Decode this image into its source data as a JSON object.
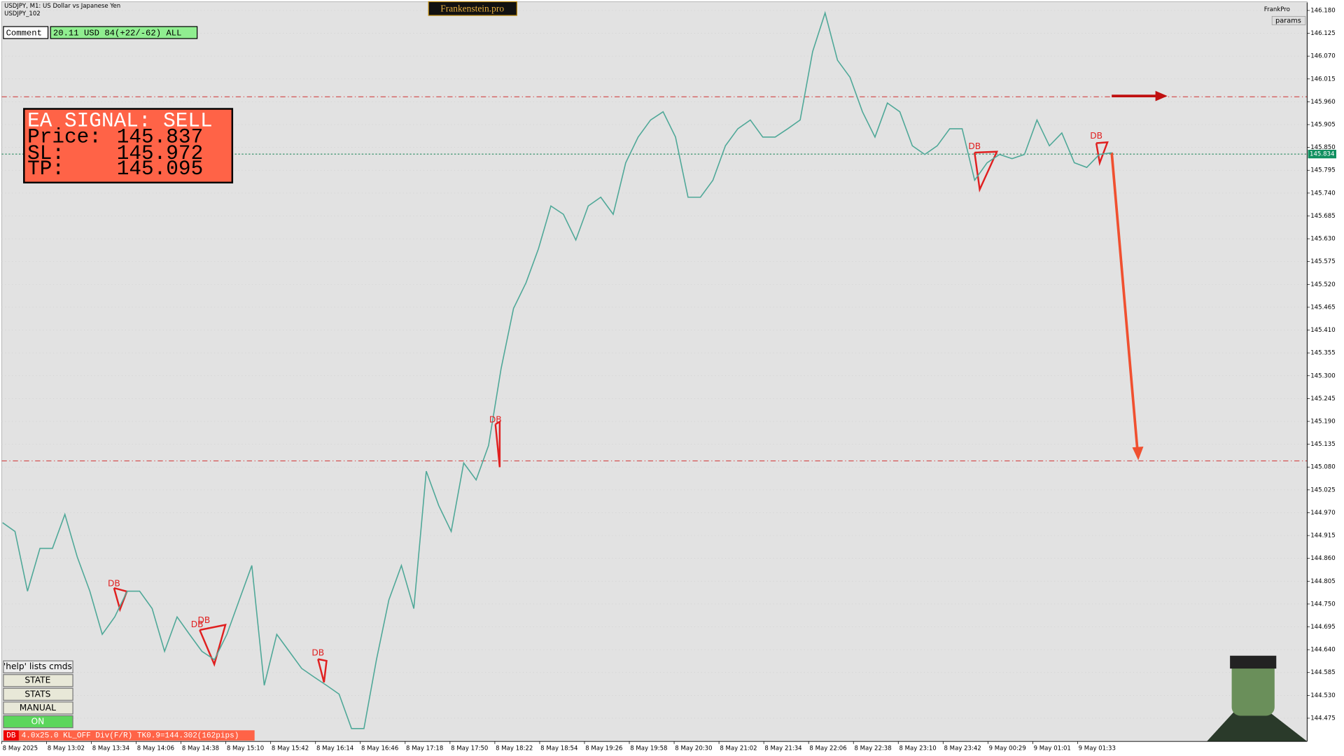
{
  "header": {
    "symbol": "USDJPY, M1:  US Dollar vs Japanese Yen",
    "account": "USDJPY_102",
    "brand": "Frankenstein.pro",
    "profile": "FrankPro",
    "params": "params"
  },
  "comment": {
    "label": "Comment",
    "text": "20.11 USD 84(+22/-62) ALL"
  },
  "signal": {
    "title": "EA SIGNAL: SELL",
    "price_label": "Price:",
    "price": 145.837,
    "sl_label": "SL:",
    "sl": 145.972,
    "tp_label": "TP:",
    "tp": 145.095
  },
  "bid": 145.834,
  "controls": {
    "help": "'help' lists cmds",
    "buttons": [
      "STATE",
      "STATS",
      "MANUAL",
      "ON"
    ]
  },
  "status": {
    "tag": "DB",
    "text": "4.0x25.0 KL_OFF Div(F/R) TK0.9=144.302(162pips)"
  },
  "pattern_labels": [
    "DB",
    "DB",
    "DB",
    "DB",
    "DB",
    "DB",
    "DB"
  ],
  "chart_data": {
    "type": "line",
    "x_labels": [
      "8 May 2025",
      "8 May 13:02",
      "8 May 13:34",
      "8 May 14:06",
      "8 May 14:38",
      "8 May 15:10",
      "8 May 15:42",
      "8 May 16:14",
      "8 May 16:46",
      "8 May 17:18",
      "8 May 17:50",
      "8 May 18:22",
      "8 May 18:54",
      "8 May 19:26",
      "8 May 19:58",
      "8 May 20:30",
      "8 May 21:02",
      "8 May 21:34",
      "8 May 22:06",
      "8 May 22:38",
      "8 May 23:10",
      "8 May 23:42",
      "9 May 00:29",
      "9 May 01:01",
      "9 May 01:33"
    ],
    "series": [
      {
        "name": "USDJPY",
        "color": "#4fa898",
        "values": [
          144.946,
          144.925,
          144.781,
          144.884,
          144.884,
          144.966,
          144.863,
          144.781,
          144.677,
          144.719,
          144.781,
          144.781,
          144.739,
          144.636,
          144.719,
          144.677,
          144.636,
          144.616,
          144.677,
          144.76,
          144.843,
          144.554,
          144.677,
          144.636,
          144.595,
          144.574,
          144.554,
          144.533,
          144.45,
          144.45,
          144.616,
          144.76,
          144.843,
          144.739,
          145.07,
          144.987,
          144.925,
          145.09,
          145.049,
          145.132,
          145.317,
          145.462,
          145.524,
          145.606,
          145.709,
          145.689,
          145.627,
          145.709,
          145.73,
          145.689,
          145.813,
          145.875,
          145.916,
          145.936,
          145.875,
          145.73,
          145.73,
          145.771,
          145.854,
          145.895,
          145.916,
          145.875,
          145.875,
          145.895,
          145.916,
          146.081,
          146.174,
          146.06,
          146.019,
          145.936,
          145.875,
          145.957,
          145.936,
          145.854,
          145.833,
          145.854,
          145.895,
          145.895,
          145.771,
          145.813,
          145.833,
          145.823,
          145.833,
          145.916,
          145.854,
          145.885,
          145.813,
          145.802,
          145.833,
          145.837
        ]
      }
    ],
    "ylim": [
      144.419,
      146.199
    ],
    "yticks": [
      {
        "value": 146.18,
        "label": "146.180"
      },
      146.125,
      {
        "value": 146.07,
        "label": "146.070"
      },
      146.015,
      {
        "value": 145.96,
        "label": "145.960"
      },
      145.905,
      {
        "value": 145.85,
        "label": "145.850"
      },
      145.795,
      {
        "value": 145.74,
        "label": "145.740"
      },
      145.685,
      {
        "value": 145.63,
        "label": "145.630"
      },
      145.575,
      {
        "value": 145.52,
        "label": "145.520"
      },
      145.465,
      {
        "value": 145.41,
        "label": "145.410"
      },
      145.355,
      {
        "value": 145.3,
        "label": "145.300"
      },
      145.245,
      {
        "value": 145.19,
        "label": "145.190"
      },
      145.135,
      {
        "value": 145.08,
        "label": "145.080"
      },
      145.025,
      {
        "value": 144.97,
        "label": "144.970"
      },
      144.915,
      {
        "value": 144.86,
        "label": "144.860"
      },
      144.805,
      {
        "value": 144.75,
        "label": "144.750"
      },
      144.695,
      {
        "value": 144.64,
        "label": "144.640"
      },
      144.585,
      {
        "value": 144.53,
        "label": "144.530"
      },
      144.475
    ]
  }
}
